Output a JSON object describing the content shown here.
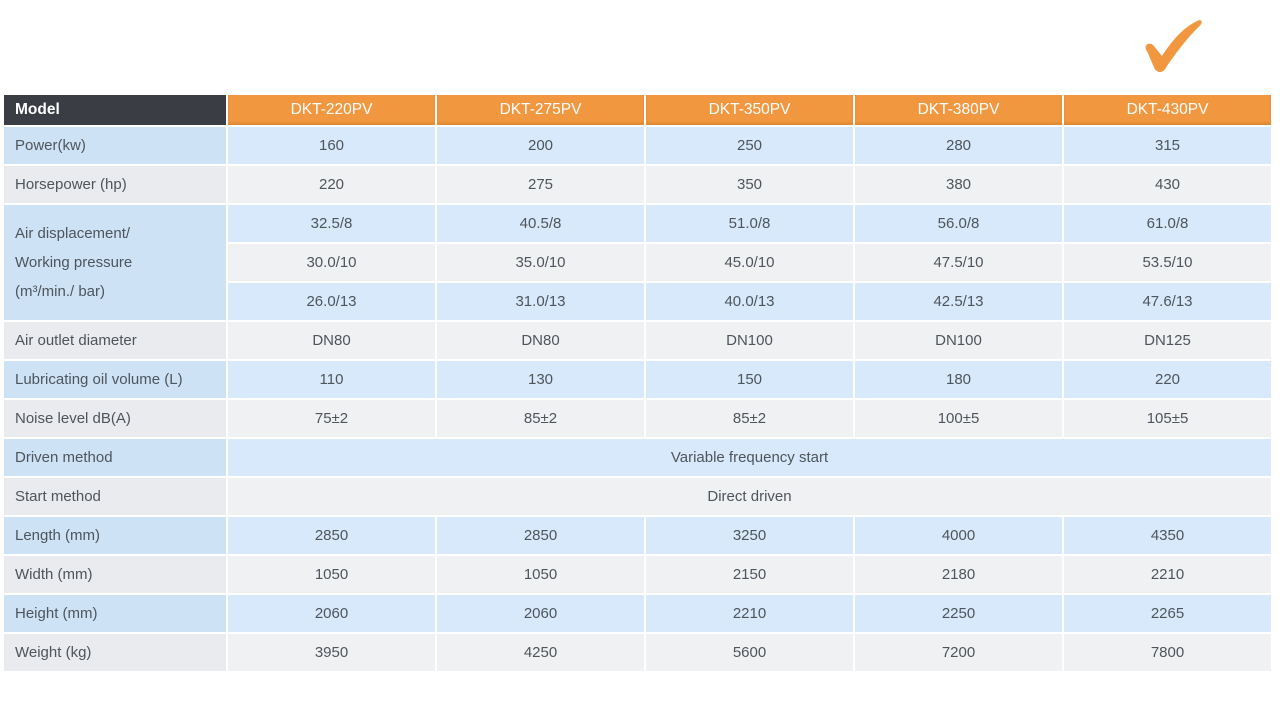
{
  "colors": {
    "header_dark": "#3a3d43",
    "header_orange": "#f0973f",
    "row_blue_label": "#cde2f5",
    "row_blue_cell": "#d7e9fa",
    "row_gray_label": "#e9ebee",
    "row_gray_cell": "#f0f1f3",
    "checkmark_orange": "#f0973f",
    "text": "#4f555c"
  },
  "icons": {
    "checkmark": "orange-brush-check"
  },
  "table": {
    "header": {
      "model_label": "Model",
      "models": [
        "DKT-220PV",
        "DKT-275PV",
        "DKT-350PV",
        "DKT-380PV",
        "DKT-430PV"
      ]
    },
    "rows": [
      {
        "type": "simple",
        "shade": "blue",
        "label": "Power(kw)",
        "values": [
          "160",
          "200",
          "250",
          "280",
          "315"
        ]
      },
      {
        "type": "simple",
        "shade": "gray",
        "label": "Horsepower (hp)",
        "values": [
          "220",
          "275",
          "350",
          "380",
          "430"
        ]
      },
      {
        "type": "group",
        "shade": "blue",
        "label_lines": [
          "Air displacement/",
          "Working pressure",
          "(m³/min./ bar)"
        ],
        "subrows": [
          {
            "shade": "blue",
            "values": [
              "32.5/8",
              "40.5/8",
              "51.0/8",
              "56.0/8",
              "61.0/8"
            ]
          },
          {
            "shade": "gray",
            "values": [
              "30.0/10",
              "35.0/10",
              "45.0/10",
              "47.5/10",
              "53.5/10"
            ]
          },
          {
            "shade": "blue",
            "values": [
              "26.0/13",
              "31.0/13",
              "40.0/13",
              "42.5/13",
              "47.6/13"
            ]
          }
        ]
      },
      {
        "type": "simple",
        "shade": "gray",
        "label": "Air outlet diameter",
        "values": [
          "DN80",
          "DN80",
          "DN100",
          "DN100",
          "DN125"
        ]
      },
      {
        "type": "simple",
        "shade": "blue",
        "label": "Lubricating oil volume (L)",
        "values": [
          "110",
          "130",
          "150",
          "180",
          "220"
        ]
      },
      {
        "type": "simple",
        "shade": "gray",
        "label": "Noise level dB(A)",
        "values": [
          "75±2",
          "85±2",
          "85±2",
          "100±5",
          "105±5"
        ]
      },
      {
        "type": "span",
        "shade": "blue",
        "label": "Driven method",
        "span_value": "Variable frequency start"
      },
      {
        "type": "span",
        "shade": "gray",
        "label": "Start method",
        "span_value": "Direct driven"
      },
      {
        "type": "simple",
        "shade": "blue",
        "label": "Length (mm)",
        "values": [
          "2850",
          "2850",
          "3250",
          "4000",
          "4350"
        ]
      },
      {
        "type": "simple",
        "shade": "gray",
        "label": "Width (mm)",
        "values": [
          "1050",
          "1050",
          "2150",
          "2180",
          "2210"
        ]
      },
      {
        "type": "simple",
        "shade": "blue",
        "label": "Height (mm)",
        "values": [
          "2060",
          "2060",
          "2210",
          "2250",
          "2265"
        ]
      },
      {
        "type": "simple",
        "shade": "gray",
        "label": "Weight (kg)",
        "values": [
          "3950",
          "4250",
          "5600",
          "7200",
          "7800"
        ]
      }
    ]
  }
}
